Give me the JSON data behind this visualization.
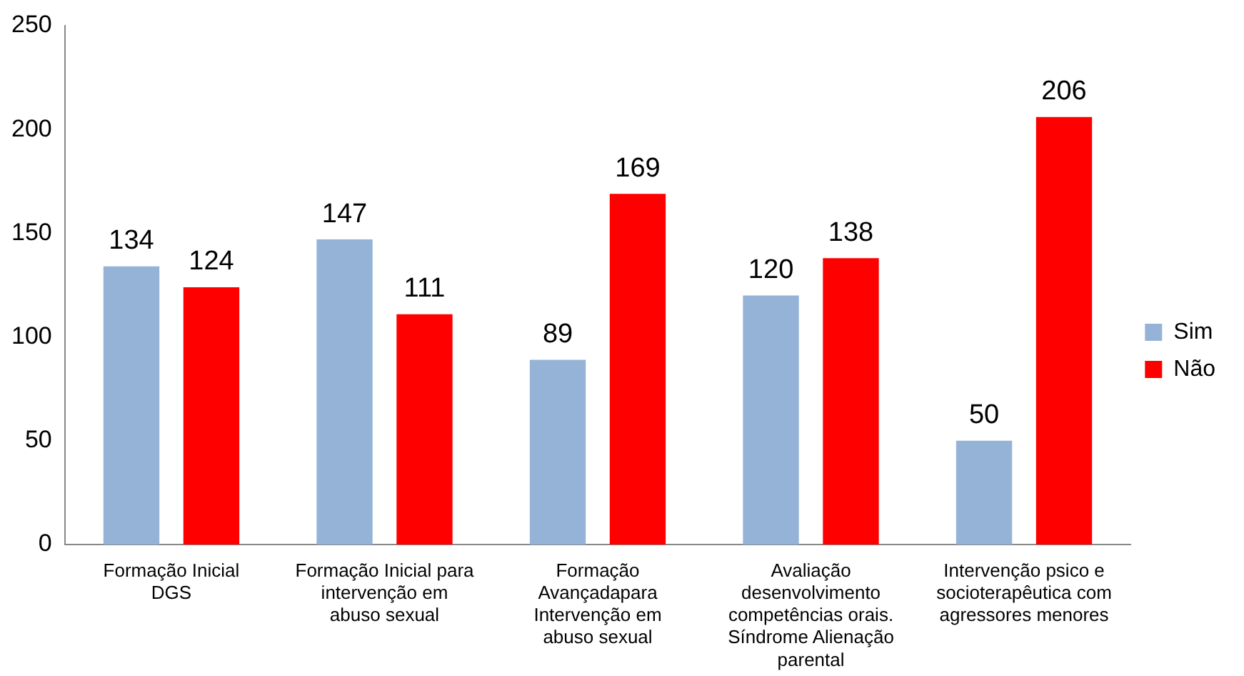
{
  "chart_data": {
    "type": "bar",
    "categories": [
      "Formação Inicial DGS",
      "Formação Inicial para intervenção em abuso sexual",
      "Formação Avançadapara Intervenção em abuso sexual",
      "Avaliação desenvolvimento competências orais. Síndrome Alienação parental",
      "Intervenção psico e socioterapêutica com agressores menores"
    ],
    "series": [
      {
        "name": "Sim",
        "color": "#95b3d7",
        "values": [
          134,
          147,
          89,
          120,
          50
        ]
      },
      {
        "name": "Não",
        "color": "#ff0000",
        "values": [
          124,
          111,
          169,
          138,
          206
        ]
      }
    ],
    "ylim": [
      0,
      250
    ],
    "yticks": [
      0,
      50,
      100,
      150,
      200,
      250
    ],
    "grid": false,
    "legend": "right",
    "data_labels": true
  }
}
